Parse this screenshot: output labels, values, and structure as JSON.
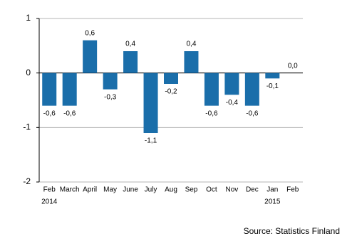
{
  "chart_data": {
    "type": "bar",
    "categories": [
      "Feb",
      "March",
      "April",
      "May",
      "June",
      "July",
      "Aug",
      "Sep",
      "Oct",
      "Nov",
      "Dec",
      "Jan",
      "Feb"
    ],
    "year_labels": [
      "2014",
      null,
      null,
      null,
      null,
      null,
      null,
      null,
      null,
      null,
      null,
      "2015",
      null
    ],
    "values": [
      -0.6,
      -0.6,
      0.6,
      -0.3,
      0.4,
      -1.1,
      -0.2,
      0.4,
      -0.6,
      -0.4,
      -0.6,
      -0.1,
      0.0
    ],
    "value_labels": [
      "-0,6",
      "-0,6",
      "0,6",
      "-0,3",
      "0,4",
      "-1,1",
      "-0,2",
      "0,4",
      "-0,6",
      "-0,4",
      "-0,6",
      "-0,1",
      "0,0"
    ],
    "color": "#1a6eaa",
    "ylim": [
      -2,
      1
    ],
    "yticks": [
      1,
      0,
      -1,
      -2
    ],
    "grid": true,
    "source": "Source:  Statistics Finland"
  }
}
